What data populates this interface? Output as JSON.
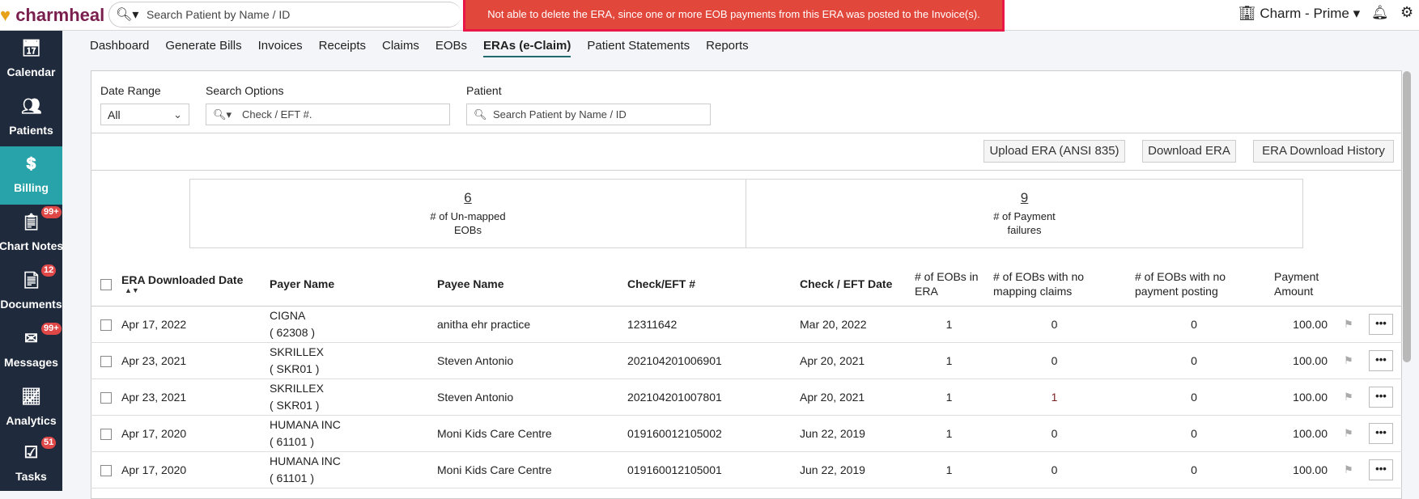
{
  "app": {
    "logo_text": "charmheal",
    "search_placeholder": "Search Patient by Name / ID",
    "org": "Charm - Prime"
  },
  "toast": {
    "message": "Not able to delete the ERA, since one or more EOB payments from this ERA was posted to the Invoice(s).",
    "color": "#e2473b"
  },
  "sidebar": {
    "items": [
      {
        "label": "Calendar",
        "icon": "calendar-icon"
      },
      {
        "label": "Patients",
        "icon": "patients-icon"
      },
      {
        "label": "Billing",
        "icon": "billing-icon",
        "active": true
      },
      {
        "label": "Chart Notes",
        "icon": "chart-notes-icon",
        "badge": "99+"
      },
      {
        "label": "Documents",
        "icon": "documents-icon",
        "badge": "12"
      },
      {
        "label": "Messages",
        "icon": "messages-icon",
        "badge": "99+"
      },
      {
        "label": "Analytics",
        "icon": "analytics-icon"
      },
      {
        "label": "Tasks",
        "icon": "tasks-icon",
        "badge": "51"
      }
    ]
  },
  "tabs": [
    "Dashboard",
    "Generate Bills",
    "Invoices",
    "Receipts",
    "Claims",
    "EOBs",
    "ERAs (e-Claim)",
    "Patient Statements",
    "Reports"
  ],
  "filters": {
    "date_range_label": "Date Range",
    "date_range_value": "All",
    "search_options_label": "Search Options",
    "search_options_placeholder": "Check / EFT #.",
    "patient_label": "Patient",
    "patient_placeholder": "Search Patient by Name / ID"
  },
  "buttons": {
    "upload": "Upload ERA (ANSI 835)",
    "download": "Download ERA",
    "history": "ERA Download History"
  },
  "stats": [
    {
      "value": "6",
      "label1": "# of Un-mapped",
      "label2": "EOBs"
    },
    {
      "value": "9",
      "label1": "# of Payment",
      "label2": "failures"
    }
  ],
  "table": {
    "headers": [
      "ERA Downloaded Date",
      "Payer Name",
      "Payee Name",
      "Check/EFT #",
      "Check / EFT Date",
      "# of EOBs in ERA",
      "# of EOBs with no mapping claims",
      "# of EOBs with no payment posting",
      "Payment Amount"
    ],
    "rows": [
      [
        "Apr 17, 2022",
        "CIGNA",
        "( 62308 )",
        "anitha ehr practice",
        "12311642",
        "Mar 20, 2022",
        "1",
        "0",
        "0",
        "100.00"
      ],
      [
        "Apr 23, 2021",
        "SKRILLEX",
        "( SKR01 )",
        "Steven Antonio",
        "202104201006901",
        "Apr 20, 2021",
        "1",
        "0",
        "0",
        "100.00"
      ],
      [
        "Apr 23, 2021",
        "SKRILLEX",
        "( SKR01 )",
        "Steven Antonio",
        "202104201007801",
        "Apr 20, 2021",
        "1",
        "1",
        "0",
        "100.00"
      ],
      [
        "Apr 17, 2020",
        "HUMANA INC",
        "( 61101 )",
        "Moni Kids Care Centre",
        "019160012105002",
        "Jun 22, 2019",
        "1",
        "0",
        "0",
        "100.00"
      ],
      [
        "Apr 17, 2020",
        "HUMANA INC",
        "( 61101 )",
        "Moni Kids Care Centre",
        "019160012105001",
        "Jun 22, 2019",
        "1",
        "0",
        "0",
        "100.00"
      ]
    ]
  }
}
